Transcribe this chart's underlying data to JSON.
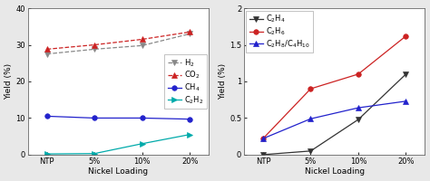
{
  "left": {
    "x_labels": [
      "NTP",
      "5%",
      "10%",
      "20%"
    ],
    "x_positions": [
      0,
      1,
      2,
      3
    ],
    "series": [
      {
        "label": "H$_2$",
        "color": "#888888",
        "marker": "v",
        "markersize": 4,
        "markerfacecolor": "#888888",
        "linestyle": "--",
        "linewidth": 0.9,
        "values": [
          27.5,
          28.8,
          29.8,
          33.0
        ]
      },
      {
        "label": "CO$_2$",
        "color": "#cc2222",
        "marker": "^",
        "markersize": 4,
        "markerfacecolor": "#cc2222",
        "linestyle": "--",
        "linewidth": 0.9,
        "values": [
          28.8,
          30.0,
          31.5,
          33.5
        ]
      },
      {
        "label": "CH$_4$",
        "color": "#2222cc",
        "marker": "o",
        "markersize": 4,
        "markerfacecolor": "#2222cc",
        "linestyle": "-",
        "linewidth": 0.9,
        "values": [
          10.5,
          10.0,
          10.0,
          9.7
        ]
      },
      {
        "label": "C$_2$H$_2$",
        "color": "#00aaaa",
        "marker": ">",
        "markersize": 4,
        "markerfacecolor": "#00aaaa",
        "linestyle": "-",
        "linewidth": 0.9,
        "values": [
          0.2,
          0.3,
          3.0,
          5.5
        ]
      }
    ],
    "ylabel": "Yield (%)",
    "xlabel": "Nickel Loading",
    "ylim": [
      0,
      40
    ],
    "yticks": [
      0,
      10,
      20,
      30,
      40
    ],
    "legend_loc": "center right",
    "legend_bbox": null
  },
  "right": {
    "x_labels": [
      "NTP",
      "5%",
      "10%",
      "20%"
    ],
    "x_positions": [
      0,
      1,
      2,
      3
    ],
    "series": [
      {
        "label": "C$_2$H$_4$",
        "color": "#333333",
        "marker": "v",
        "markersize": 4,
        "markerfacecolor": "#333333",
        "linestyle": "-",
        "linewidth": 0.9,
        "values": [
          0.0,
          0.05,
          0.48,
          1.1
        ]
      },
      {
        "label": "C$_2$H$_6$",
        "color": "#cc2222",
        "marker": "o",
        "markersize": 4,
        "markerfacecolor": "#cc2222",
        "linestyle": "-",
        "linewidth": 0.9,
        "values": [
          0.22,
          0.9,
          1.1,
          1.62
        ]
      },
      {
        "label": "C$_2$H$_8$/C$_4$H$_{10}$",
        "color": "#2222cc",
        "marker": "^",
        "markersize": 4,
        "markerfacecolor": "#2222cc",
        "linestyle": "-",
        "linewidth": 0.9,
        "values": [
          0.22,
          0.49,
          0.64,
          0.73
        ]
      }
    ],
    "ylabel": "Yield (%)",
    "xlabel": "Nickel Loading",
    "ylim": [
      0,
      2.0
    ],
    "yticks": [
      0.0,
      0.5,
      1.0,
      1.5,
      2.0
    ],
    "legend_loc": "upper left",
    "legend_bbox": null
  },
  "fig_bg": "#e8e8e8",
  "ax_bg": "#ffffff",
  "label_fontsize": 6.5,
  "tick_fontsize": 6.0,
  "legend_fontsize": 6.0
}
